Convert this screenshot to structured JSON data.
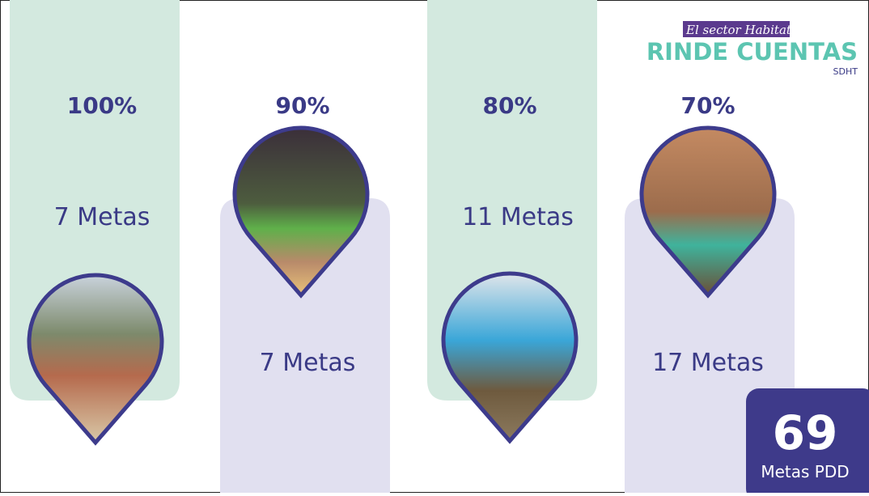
{
  "logo": {
    "tagline": "El sector Habitat",
    "title": "RINDE CUENTAS",
    "org": "SDHT"
  },
  "columns": [
    {
      "percent": "100%",
      "metas": "7 Metas"
    },
    {
      "percent": "90%",
      "metas": "7 Metas"
    },
    {
      "percent": "80%",
      "metas": "11 Metas"
    },
    {
      "percent": "70%",
      "metas": "17 Metas"
    }
  ],
  "total": {
    "value": "69",
    "label": "Metas PDD"
  }
}
